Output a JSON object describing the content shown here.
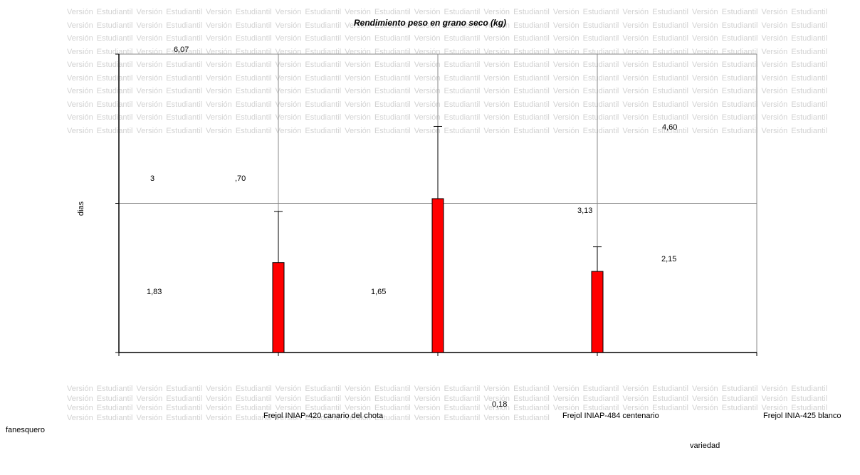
{
  "chart_data": {
    "type": "bar",
    "title": "Rendimiento peso en grano seco (kg)",
    "xlabel": "variedad",
    "ylabel": "dias",
    "categories": [
      "Frejol INIAP-420 canario del chota",
      "Frejol INIAP-484 centenario",
      "Frejol INIA-425 blanco fanesquero"
    ],
    "series": [
      {
        "values": [
          1.83,
          3.13,
          1.65
        ]
      }
    ],
    "error_upper": [
      1.04,
      1.47,
      0.5
    ],
    "ylim": [
      0,
      6.07
    ],
    "grid": true,
    "bar_color": "#ff0000",
    "bar_edge_color": "#000000",
    "annotations": [
      {
        "text": "6,07",
        "role": "axis-max"
      },
      {
        "text": "4,60"
      },
      {
        "text": "3"
      },
      {
        "text": ",70"
      },
      {
        "text": "3,13"
      },
      {
        "text": "2,15"
      },
      {
        "text": "1,83"
      },
      {
        "text": "1,65"
      },
      {
        "text": "0,18"
      }
    ]
  },
  "category_lines": {
    "cat1": "Frejol INIAP-420 canario del chota",
    "cat2": "Frejol INIAP-484 centenario",
    "cat3_line1": "Frejol INIA-425 blanco",
    "cat3_line2": "fanesquero"
  },
  "watermark": "Versión Estudiantil"
}
